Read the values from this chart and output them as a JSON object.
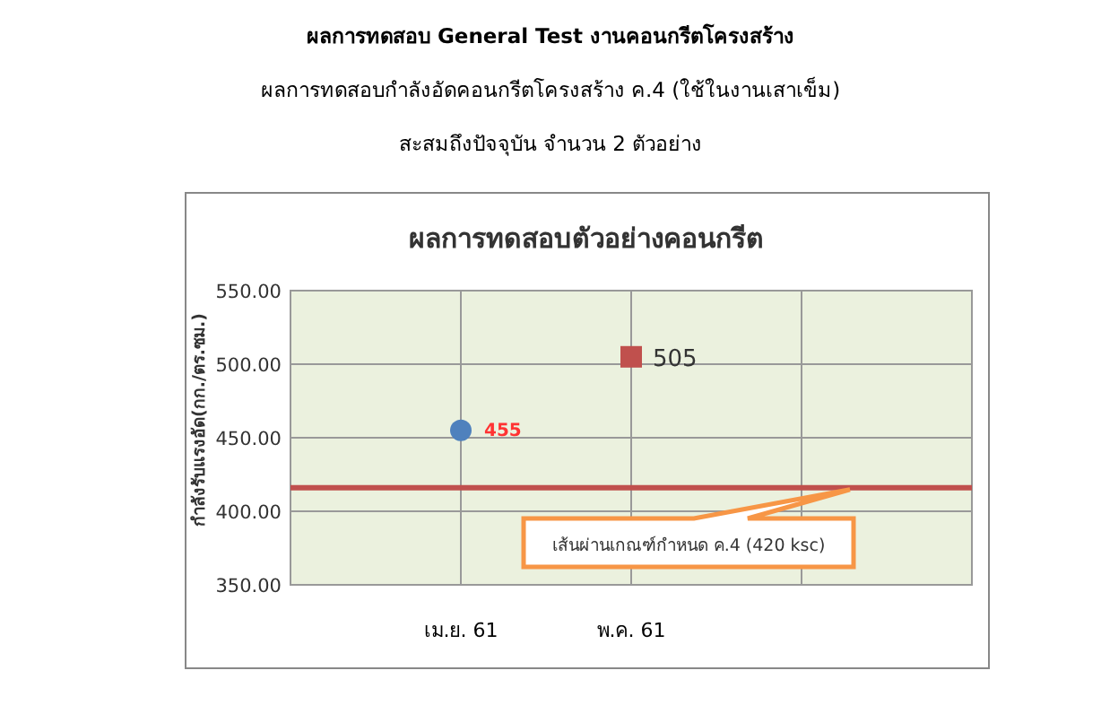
{
  "chart_data": {
    "type": "scatter",
    "title": "ผลการทดสอบตัวอย่างคอนกรีต",
    "subtitle": [
      "ผลการทดสอบ General Test งานคอนกรีตโครงสร้าง",
      "ผลการทดสอบกำลังอัดคอนกรีตโครงสร้าง ค.4 (ใช้ในงานเสาเข็ม)",
      "สะสมถึงปัจจุบัน จำนวน 2 ตัวอย่าง"
    ],
    "ylabel": "กำลังรับแรงอัด(กก./ตร.ซม.)",
    "categories": [
      "เม.ย. 61",
      "พ.ค. 61",
      null
    ],
    "series": [
      {
        "color": "#4f81bd",
        "marker": "circle",
        "values": [
          455,
          null,
          null
        ],
        "value_labels": [
          "455",
          null,
          null
        ]
      },
      {
        "color": "#c0504d",
        "marker": "square",
        "values": [
          null,
          505,
          null
        ],
        "value_labels": [
          null,
          "505",
          null
        ]
      }
    ],
    "ylim": [
      350,
      550
    ],
    "yticks": [
      {
        "value": 350,
        "label": "350.00"
      },
      {
        "value": 400,
        "label": "400.00"
      },
      {
        "value": 450,
        "label": "450.00"
      },
      {
        "value": 500,
        "label": "500.00"
      },
      {
        "value": 550,
        "label": "550.00"
      }
    ],
    "ref_lines": [
      {
        "axis": "y",
        "value": 416,
        "label": "เส้นผ่านเกณฑ์กำหนด ค.4 (420 ksc)",
        "color": "#c0504d"
      }
    ],
    "grid": true
  }
}
